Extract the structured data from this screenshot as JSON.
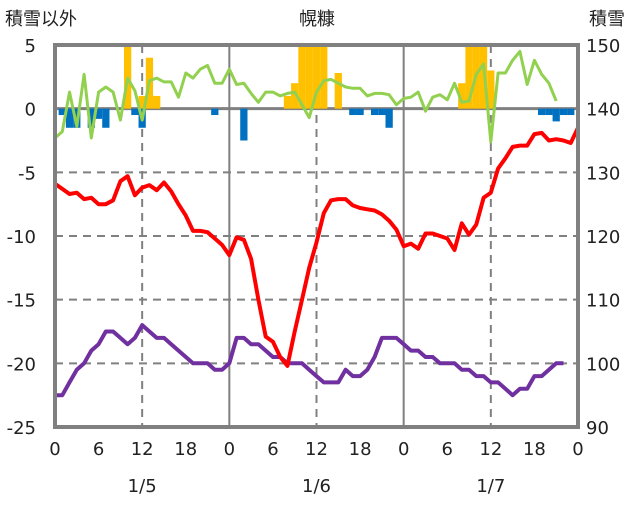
{
  "chart_data": {
    "type": "line",
    "title": "幌糠",
    "ylabel_left": "積雪以外",
    "ylabel_right": "積雪",
    "ylim_left": [
      -25,
      5
    ],
    "ylim_right": [
      90,
      150
    ],
    "yticks_left": [
      "5",
      "0",
      "-5",
      "-10",
      "-15",
      "-20",
      "-25"
    ],
    "yticks_right": [
      "150",
      "140",
      "130",
      "120",
      "110",
      "100",
      "90"
    ],
    "x_hours_range": [
      0,
      72
    ],
    "xtick_labels": [
      "0",
      "6",
      "12",
      "18",
      "0",
      "6",
      "12",
      "18",
      "0",
      "6",
      "12",
      "18",
      "0"
    ],
    "date_labels": [
      "1/5",
      "1/6",
      "1/7"
    ],
    "grid": true,
    "colors": {
      "temperature": "#ff0000",
      "snow_depth": "#7030a0",
      "green_series": "#92d050",
      "positive_bar": "#ffc000",
      "negative_bar": "#0070c0",
      "frame": "#808080"
    },
    "series": [
      {
        "name": "temperature",
        "axis": "left",
        "values": [
          -5.9,
          -6.3,
          -6.7,
          -6.6,
          -7.1,
          -7.0,
          -7.5,
          -7.5,
          -7.2,
          -5.7,
          -5.3,
          -6.8,
          -6.2,
          -6.0,
          -6.4,
          -5.8,
          -6.5,
          -7.5,
          -8.4,
          -9.6,
          -9.6,
          -9.7,
          -10.2,
          -10.7,
          -11.5,
          -10.1,
          -10.3,
          -11.8,
          -15.0,
          -17.9,
          -18.3,
          -19.5,
          -20.2,
          -17.5,
          -15.0,
          -12.5,
          -10.5,
          -8.2,
          -7.2,
          -7.1,
          -7.1,
          -7.6,
          -7.8,
          -7.9,
          -8.0,
          -8.3,
          -8.8,
          -9.5,
          -10.8,
          -10.6,
          -11.0,
          -9.8,
          -9.8,
          -10.0,
          -10.2,
          -11.1,
          -9.0,
          -9.9,
          -9.1,
          -7.0,
          -6.6,
          -4.7,
          -3.9,
          -3.0,
          -2.9,
          -2.9,
          -2.0,
          -1.9,
          -2.5,
          -2.4,
          -2.5,
          -2.7,
          -1.5
        ]
      },
      {
        "name": "snow_depth",
        "axis": "right",
        "values": [
          95,
          95,
          97,
          99,
          100,
          102,
          103,
          105,
          105,
          104,
          103,
          104,
          106,
          105,
          104,
          104,
          103,
          102,
          101,
          100,
          100,
          100,
          99,
          99,
          100,
          104,
          104,
          103,
          103,
          102,
          101,
          101,
          100,
          100,
          100,
          99,
          98,
          97,
          97,
          97,
          99,
          98,
          98,
          99,
          101,
          104,
          104,
          104,
          103,
          102,
          102,
          101,
          101,
          100,
          100,
          100,
          99,
          99,
          98,
          98,
          97,
          97,
          96,
          95,
          96,
          96,
          98,
          98,
          99,
          100,
          100
        ]
      },
      {
        "name": "green_series",
        "axis": "left",
        "values": [
          -2.3,
          -1.8,
          1.3,
          -1.4,
          2.7,
          -2.3,
          1.3,
          1.7,
          1.3,
          -0.9,
          2.4,
          1.4,
          -0.9,
          2.2,
          2.4,
          2.1,
          2.1,
          0.9,
          2.8,
          2.4,
          3.1,
          3.4,
          2.0,
          2.0,
          3.1,
          1.9,
          2.0,
          1.2,
          0.5,
          1.3,
          1.3,
          1.0,
          1.2,
          1.3,
          0.3,
          -0.7,
          1.3,
          2.2,
          2.3,
          2.0,
          1.7,
          1.6,
          1.6,
          1.0,
          1.2,
          1.2,
          1.1,
          0.3,
          0.8,
          0.9,
          1.3,
          -0.2,
          0.9,
          1.1,
          0.7,
          2.0,
          0.5,
          0.6,
          2.7,
          3.5,
          -2.6,
          2.8,
          2.8,
          3.8,
          4.5,
          1.9,
          3.8,
          2.7,
          2.0,
          0.6
        ]
      },
      {
        "name": "hourly_change_bars",
        "axis": "left",
        "type": "bar",
        "points": [
          [
            1,
            -0.5
          ],
          [
            2,
            -1.5
          ],
          [
            3,
            -1.5
          ],
          [
            5,
            -1.5
          ],
          [
            6,
            -0.8
          ],
          [
            7,
            -1.5
          ],
          [
            10,
            5
          ],
          [
            11,
            -0.5
          ],
          [
            12,
            1
          ],
          [
            12,
            -1.5
          ],
          [
            13,
            4
          ],
          [
            14,
            1
          ],
          [
            22,
            -0.5
          ],
          [
            26,
            -2.5
          ],
          [
            32,
            1
          ],
          [
            33,
            2
          ],
          [
            34,
            5
          ],
          [
            35,
            5
          ],
          [
            36,
            5
          ],
          [
            37,
            5
          ],
          [
            39,
            2.8
          ],
          [
            41,
            -0.5
          ],
          [
            42,
            -0.5
          ],
          [
            44,
            -0.5
          ],
          [
            45,
            -0.5
          ],
          [
            46,
            -1.5
          ],
          [
            56,
            2
          ],
          [
            57,
            5
          ],
          [
            58,
            5
          ],
          [
            59,
            5
          ],
          [
            60,
            3
          ],
          [
            67,
            -0.5
          ],
          [
            68,
            -0.5
          ],
          [
            69,
            -1.0
          ],
          [
            70,
            -0.5
          ],
          [
            71,
            -0.5
          ]
        ]
      }
    ]
  }
}
